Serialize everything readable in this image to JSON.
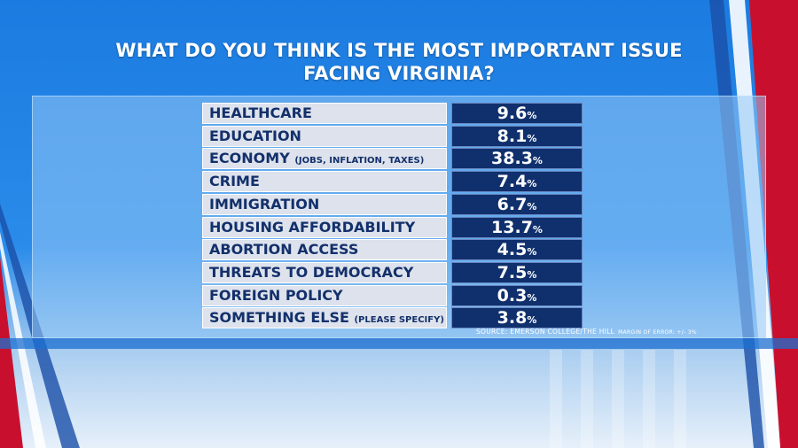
{
  "title_line1": "WHAT DO YOU THINK IS THE MOST IMPORTANT ISSUE",
  "title_line2": "FACING VIRGINIA?",
  "source": "SOURCE: EMERSON COLLEGE/THE HILL",
  "margin_of_error": "MARGIN OF ERROR: +/- 3%",
  "colors": {
    "label_bg": "#dde2ec",
    "label_text": "#13306b",
    "value_bg": "#10306d",
    "value_text": "#ffffff",
    "accent_red": "#c8102e"
  },
  "chart_data": {
    "type": "table",
    "title": "WHAT DO YOU THINK IS THE MOST IMPORTANT ISSUE FACING VIRGINIA?",
    "unit": "%",
    "rows": [
      {
        "label": "HEALTHCARE",
        "note": "",
        "value": "9.6",
        "unit": "%"
      },
      {
        "label": "EDUCATION",
        "note": "",
        "value": "8.1",
        "unit": "%"
      },
      {
        "label": "ECONOMY",
        "note": "(JOBS, INFLATION, TAXES)",
        "value": "38.3",
        "unit": "%"
      },
      {
        "label": "CRIME",
        "note": "",
        "value": "7.4",
        "unit": "%"
      },
      {
        "label": "IMMIGRATION",
        "note": "",
        "value": "6.7",
        "unit": "%"
      },
      {
        "label": "HOUSING AFFORDABILITY",
        "note": "",
        "value": "13.7",
        "unit": "%"
      },
      {
        "label": "ABORTION ACCESS",
        "note": "",
        "value": "4.5",
        "unit": "%"
      },
      {
        "label": "THREATS TO DEMOCRACY",
        "note": "",
        "value": "7.5",
        "unit": "%"
      },
      {
        "label": "FOREIGN POLICY",
        "note": "",
        "value": "0.3",
        "unit": "%"
      },
      {
        "label": "SOMETHING ELSE",
        "note": "(PLEASE SPECIFY)",
        "value": "3.8",
        "unit": "%"
      }
    ]
  }
}
